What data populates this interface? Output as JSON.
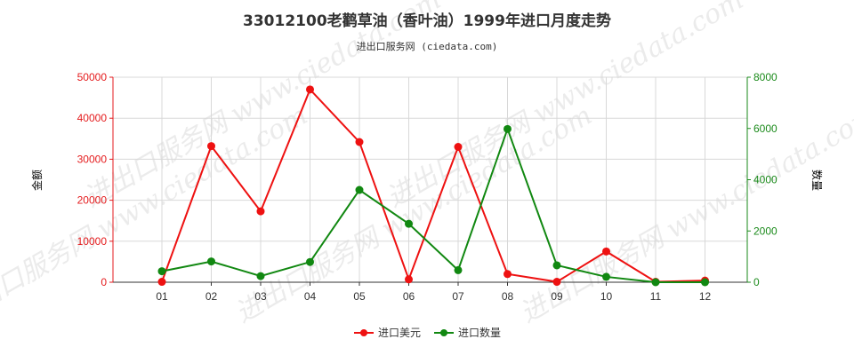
{
  "chart_data": {
    "type": "line",
    "title": "33012100老鹳草油（香叶油）1999年进口月度走势",
    "subtitle": "进出口服务网 (ciedata.com)",
    "watermark": "进出口服务网 www.ciedata.com",
    "categories": [
      "01",
      "02",
      "03",
      "04",
      "05",
      "06",
      "07",
      "08",
      "09",
      "10",
      "11",
      "12"
    ],
    "left_axis": {
      "label": "金额",
      "ylim": [
        0,
        50000
      ],
      "ticks": [
        "0",
        "10000",
        "20000",
        "30000",
        "40000",
        "50000"
      ],
      "color": "#e41a1c"
    },
    "right_axis": {
      "label": "数量",
      "ylim": [
        0,
        8000
      ],
      "ticks": [
        "0",
        "2000",
        "4000",
        "6000",
        "8000"
      ],
      "color": "#1a8a1a"
    },
    "grid": true,
    "legend_position": "bottom",
    "series": [
      {
        "name": "进口美元",
        "axis": "left",
        "color": "#ee1111",
        "values": [
          100,
          33200,
          17300,
          47000,
          34200,
          700,
          33000,
          2000,
          100,
          7500,
          100,
          400
        ]
      },
      {
        "name": "进口数量",
        "axis": "right",
        "color": "#118811",
        "values": [
          430,
          810,
          240,
          790,
          3600,
          2280,
          470,
          5980,
          660,
          210,
          0,
          0
        ]
      }
    ]
  }
}
